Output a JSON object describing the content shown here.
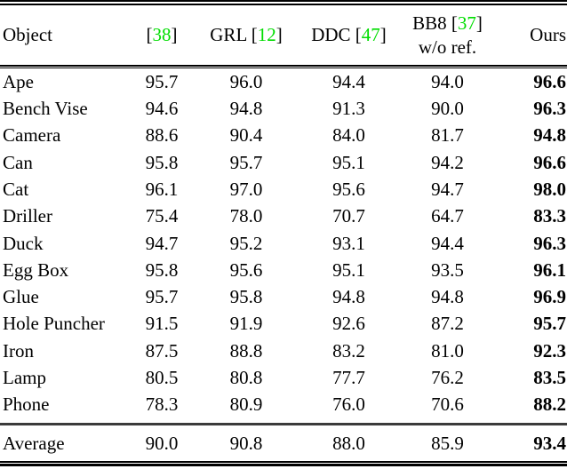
{
  "colors": {
    "citation": "#00dd00",
    "text": "#000000",
    "average_rule": "#3b3b3b"
  },
  "header": {
    "object_label": "Object",
    "col1": {
      "pre": "[",
      "cite": "38",
      "post": "]"
    },
    "col2": {
      "pre": "GRL [",
      "cite": "12",
      "post": "]"
    },
    "col3": {
      "pre": "DDC [",
      "cite": "47",
      "post": "]"
    },
    "col4": {
      "line1_pre": "BB8 [",
      "cite": "37",
      "line1_post": "]",
      "line2": "w/o ref."
    },
    "ours_label": "Ours"
  },
  "rows": [
    {
      "object": "Ape",
      "values": [
        "95.7",
        "96.0",
        "94.4",
        "94.0",
        "96.6"
      ]
    },
    {
      "object": "Bench Vise",
      "values": [
        "94.6",
        "94.8",
        "91.3",
        "90.0",
        "96.3"
      ]
    },
    {
      "object": "Camera",
      "values": [
        "88.6",
        "90.4",
        "84.0",
        "81.7",
        "94.8"
      ]
    },
    {
      "object": "Can",
      "values": [
        "95.8",
        "95.7",
        "95.1",
        "94.2",
        "96.6"
      ]
    },
    {
      "object": "Cat",
      "values": [
        "96.1",
        "97.0",
        "95.6",
        "94.7",
        "98.0"
      ]
    },
    {
      "object": "Driller",
      "values": [
        "75.4",
        "78.0",
        "70.7",
        "64.7",
        "83.3"
      ]
    },
    {
      "object": "Duck",
      "values": [
        "94.7",
        "95.2",
        "93.1",
        "94.4",
        "96.3"
      ]
    },
    {
      "object": "Egg Box",
      "values": [
        "95.8",
        "95.6",
        "95.1",
        "93.5",
        "96.1"
      ]
    },
    {
      "object": "Glue",
      "values": [
        "95.7",
        "95.8",
        "94.8",
        "94.8",
        "96.9"
      ]
    },
    {
      "object": "Hole Puncher",
      "values": [
        "91.5",
        "91.9",
        "92.6",
        "87.2",
        "95.7"
      ]
    },
    {
      "object": "Iron",
      "values": [
        "87.5",
        "88.8",
        "83.2",
        "81.0",
        "92.3"
      ]
    },
    {
      "object": "Lamp",
      "values": [
        "80.5",
        "80.8",
        "77.7",
        "76.2",
        "83.5"
      ]
    },
    {
      "object": "Phone",
      "values": [
        "78.3",
        "80.9",
        "76.0",
        "70.6",
        "88.2"
      ]
    }
  ],
  "average": {
    "object": "Average",
    "values": [
      "90.0",
      "90.8",
      "88.0",
      "85.9",
      "93.4"
    ]
  }
}
